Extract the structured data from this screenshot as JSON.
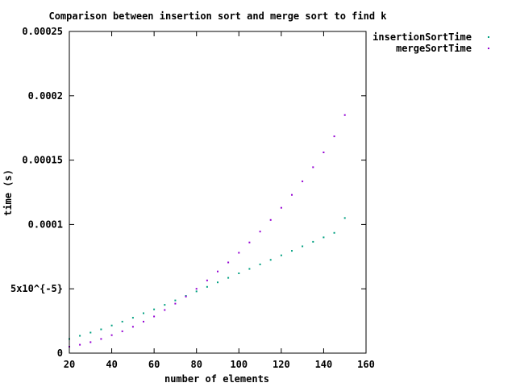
{
  "chart_data": {
    "type": "scatter",
    "title": "Comparison between insertion sort and merge sort to find k",
    "xlabel": "number of elements",
    "ylabel": "time (s)",
    "xlim": [
      20,
      160
    ],
    "ylim": [
      0,
      0.00025
    ],
    "x_ticks": [
      20,
      40,
      60,
      80,
      100,
      120,
      140,
      160
    ],
    "x_tick_labels": [
      "20",
      "40",
      "60",
      "80",
      "100",
      "120",
      "140",
      "160"
    ],
    "y_ticks": [
      0,
      5e-05,
      0.0001,
      0.00015,
      0.0002,
      0.00025
    ],
    "y_tick_labels": [
      "0",
      "5x10^{-5}",
      "0.0001",
      "0.00015",
      "0.0002",
      "0.00025"
    ],
    "grid": false,
    "legend_position": "outside-top-right",
    "series": [
      {
        "name": "insertionSortTime",
        "color": "#00a080",
        "x": [
          20,
          25,
          30,
          35,
          40,
          45,
          50,
          55,
          60,
          65,
          70,
          75,
          80,
          85,
          90,
          95,
          100,
          105,
          110,
          115,
          120,
          125,
          130,
          135,
          140,
          145,
          150
        ],
        "y": [
          1.1e-05,
          1.35e-05,
          1.6e-05,
          1.85e-05,
          2.15e-05,
          2.45e-05,
          2.75e-05,
          3.1e-05,
          3.4e-05,
          3.75e-05,
          4.1e-05,
          4.45e-05,
          4.8e-05,
          5.15e-05,
          5.5e-05,
          5.85e-05,
          6.2e-05,
          6.55e-05,
          6.9e-05,
          7.25e-05,
          7.6e-05,
          7.95e-05,
          8.3e-05,
          8.65e-05,
          9e-05,
          9.35e-05,
          0.000105
        ]
      },
      {
        "name": "mergeSortTime",
        "color": "#9400d3",
        "x": [
          20,
          25,
          30,
          35,
          40,
          45,
          50,
          55,
          60,
          65,
          70,
          75,
          80,
          85,
          90,
          95,
          100,
          105,
          110,
          115,
          120,
          125,
          130,
          135,
          140,
          145,
          150
        ],
        "y": [
          5e-06,
          6.5e-06,
          8.5e-06,
          1.1e-05,
          1.4e-05,
          1.7e-05,
          2.05e-05,
          2.45e-05,
          2.85e-05,
          3.35e-05,
          3.85e-05,
          4.4e-05,
          5e-05,
          5.65e-05,
          6.35e-05,
          7.05e-05,
          7.8e-05,
          8.6e-05,
          9.45e-05,
          0.0001035,
          0.000113,
          0.000123,
          0.0001335,
          0.0001445,
          0.000156,
          0.0001685,
          0.000185
        ]
      }
    ]
  }
}
